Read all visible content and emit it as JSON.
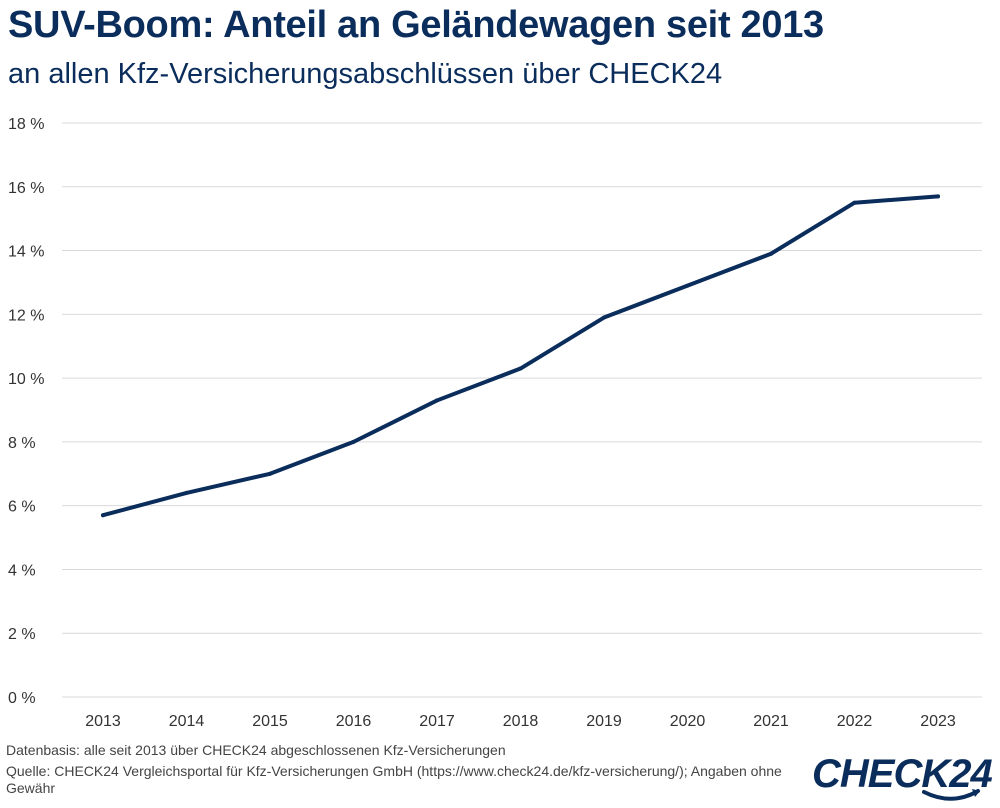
{
  "header": {
    "title": "SUV-Boom: Anteil an Geländewagen seit 2013",
    "subtitle": "an allen Kfz-Versicherungsabschlüssen über CHECK24"
  },
  "footer": {
    "source_line_1": "Datenbasis: alle seit 2013 über CHECK24 abgeschlossenen Kfz-Versicherungen",
    "source_line_2": "Quelle: CHECK24 Vergleichsportal für Kfz-Versicherungen GmbH (https://www.check24.de/kfz-versicherung/); Angaben ohne Gewähr"
  },
  "logo": {
    "text": "CHECK24",
    "color": "#0b2d5c"
  },
  "chart_data": {
    "type": "line",
    "title": "SUV-Boom: Anteil an Geländewagen seit 2013",
    "subtitle": "an allen Kfz-Versicherungsabschlüssen über CHECK24",
    "xlabel": "",
    "ylabel": "",
    "categories": [
      "2013",
      "2014",
      "2015",
      "2016",
      "2017",
      "2018",
      "2019",
      "2020",
      "2021",
      "2022",
      "2023"
    ],
    "series": [
      {
        "values": [
          5.7,
          6.4,
          7.0,
          8.0,
          9.3,
          10.3,
          11.9,
          12.9,
          13.9,
          15.5,
          15.7
        ],
        "color": "#0b2d5c"
      }
    ],
    "ylim": [
      0,
      18
    ],
    "y_ticks": [
      0,
      2,
      4,
      6,
      8,
      10,
      12,
      14,
      16,
      18
    ],
    "y_tick_labels": [
      "0 %",
      "2 %",
      "4 %",
      "6 %",
      "8 %",
      "10 %",
      "12 %",
      "14 %",
      "16 %",
      "18 %"
    ],
    "grid": "horizontal",
    "gridline_color": "#d9d9d9",
    "legend": "none"
  }
}
